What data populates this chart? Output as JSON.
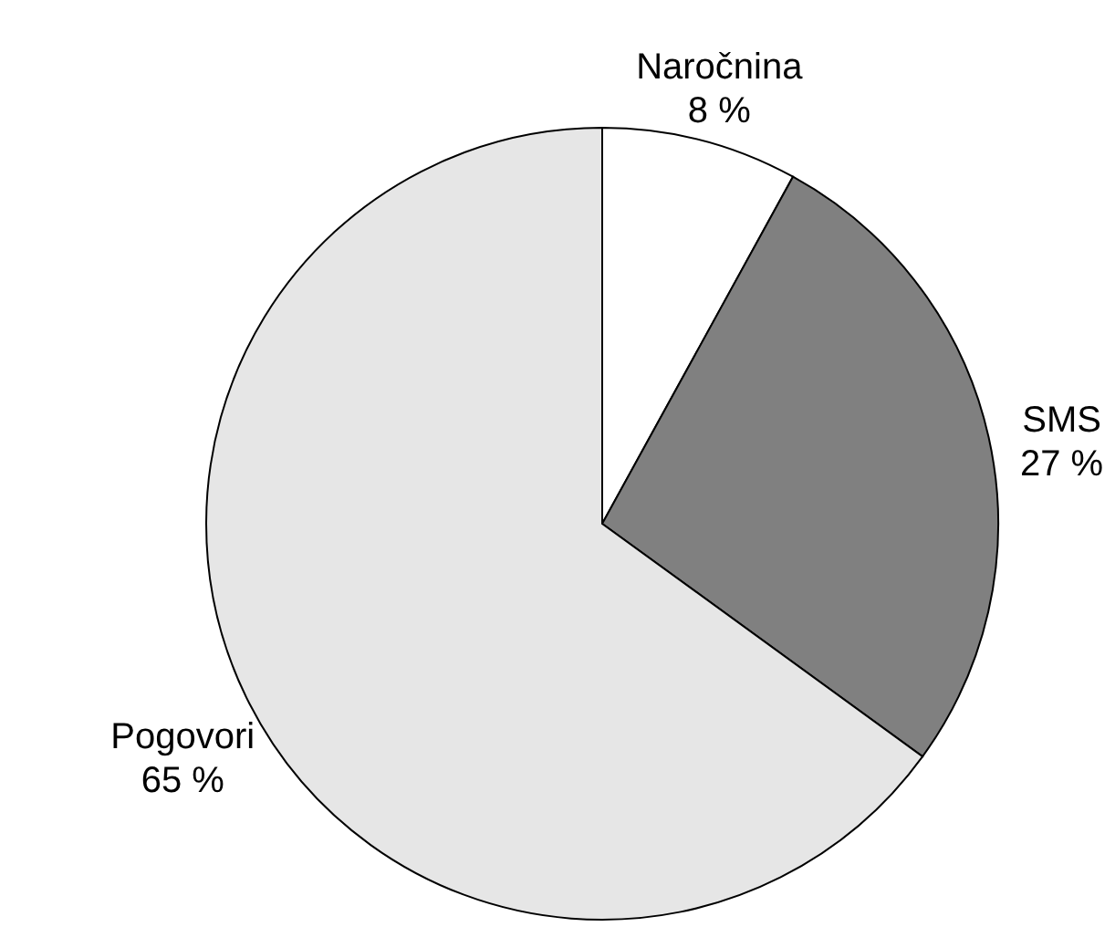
{
  "chart_data": {
    "type": "pie",
    "categories": [
      "Naročnina",
      "SMS",
      "Pogovori"
    ],
    "values": [
      8,
      27,
      65
    ],
    "colors": [
      "#ffffff",
      "#808080",
      "#e6e6e6"
    ],
    "value_labels": [
      "8 %",
      "27 %",
      "65 %"
    ]
  }
}
